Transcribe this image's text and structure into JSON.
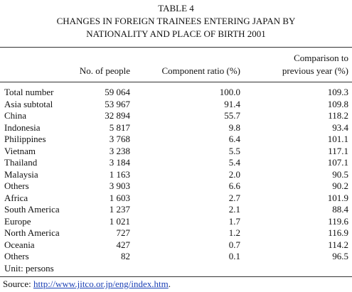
{
  "header": {
    "table_label": "TABLE 4",
    "title_line1": "CHANGES IN FOREIGN TRAINEES ENTERING JAPAN BY",
    "title_line2": "NATIONALITY AND PLACE OF BIRTH 2001"
  },
  "table": {
    "columns": [
      "No. of people",
      "Component ratio (%)",
      [
        "Comparison to",
        "previous year (%)"
      ]
    ],
    "rows": [
      [
        "Total number",
        "59 064",
        "100.0",
        "109.3"
      ],
      [
        "Asia subtotal",
        "53 967",
        "91.4",
        "109.8"
      ],
      [
        "China",
        "32 894",
        "55.7",
        "118.2"
      ],
      [
        "Indonesia",
        "5 817",
        "9.8",
        "93.4"
      ],
      [
        "Philippines",
        "3 768",
        "6.4",
        "101.1"
      ],
      [
        "Vietnam",
        "3 238",
        "5.5",
        "117.1"
      ],
      [
        "Thailand",
        "3 184",
        "5.4",
        "107.1"
      ],
      [
        "Malaysia",
        "1 163",
        "2.0",
        "90.5"
      ],
      [
        "Others",
        "3 903",
        "6.6",
        "90.2"
      ],
      [
        "Africa",
        "1 603",
        "2.7",
        "101.9"
      ],
      [
        "South America",
        "1 237",
        "2.1",
        "88.4"
      ],
      [
        "Europe",
        "1 021",
        "1.7",
        "119.6"
      ],
      [
        "North America",
        "727",
        "1.2",
        "116.9"
      ],
      [
        "Oceania",
        "427",
        "0.7",
        "114.2"
      ],
      [
        "Others",
        "82",
        "0.1",
        "96.5"
      ]
    ],
    "unit": "Unit: persons"
  },
  "source": {
    "label": "Source:",
    "url": "http://www.jitco.or.jp/eng/index.htm",
    "end": "."
  }
}
